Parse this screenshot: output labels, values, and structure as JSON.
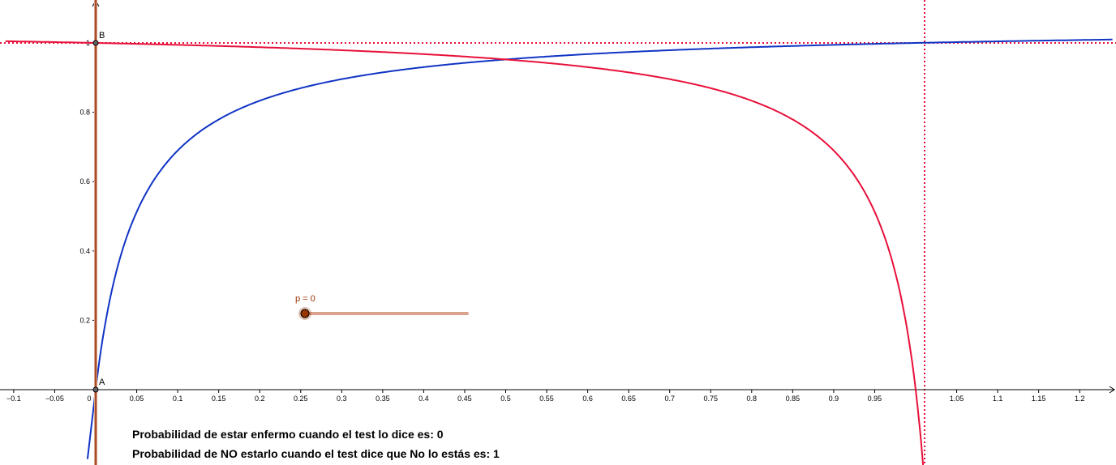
{
  "colors": {
    "background": "#ffffff",
    "axis": "#000000",
    "blue_curve": "#1034c4",
    "red_curve": "#e8103a",
    "slider_line": "#d9a28c",
    "slider_point": "#993300",
    "vertical_line": "#993300"
  },
  "slider": {
    "label": "p = 0",
    "value": 0,
    "min": 0,
    "max": 1
  },
  "points": {
    "A": {
      "name": "A",
      "x": 0,
      "y": 0
    },
    "B": {
      "name": "B",
      "x": 0,
      "y": 1
    }
  },
  "texts": {
    "line1": "Probabilidad de estar enfermo cuando el test lo dice es: 0",
    "line2": "Probabilidad de NO estarlo cuando el test dice que No lo estás es: 1"
  },
  "chart_data": {
    "type": "line",
    "title": "",
    "xlabel": "",
    "ylabel": "",
    "xlim": [
      -0.11,
      1.24
    ],
    "ylim": [
      -0.2,
      1.12
    ],
    "grid": false,
    "x_ticks": [
      "-0.1",
      "-0.05",
      "0",
      "0.05",
      "0.1",
      "0.15",
      "0.2",
      "0.25",
      "0.3",
      "0.35",
      "0.4",
      "0.45",
      "0.5",
      "0.55",
      "0.6",
      "0.65",
      "0.7",
      "0.75",
      "0.8",
      "0.85",
      "0.9",
      "0.95",
      "1.05",
      "1.1",
      "1.15",
      "1.2"
    ],
    "y_ticks": [
      "0.2",
      "0.4",
      "0.6",
      "0.8",
      "1"
    ],
    "series": [
      {
        "color": "#1034c4",
        "x": [
          -0.01,
          0,
          0.02,
          0.05,
          0.1,
          0.15,
          0.2,
          0.3,
          0.4,
          0.5,
          0.6,
          0.7,
          0.8,
          0.9,
          1.0,
          1.1,
          1.24
        ],
        "y": [
          -0.2,
          0,
          0.29,
          0.5,
          0.67,
          0.75,
          0.8,
          0.87,
          0.91,
          0.95,
          0.96,
          0.975,
          0.985,
          0.993,
          1,
          1.005,
          1.01
        ]
      },
      {
        "color": "#e8103a",
        "x": [
          -0.11,
          0,
          0.1,
          0.2,
          0.3,
          0.4,
          0.5,
          0.6,
          0.7,
          0.8,
          0.85,
          0.9,
          0.95,
          0.98,
          1.0,
          1.01
        ],
        "y": [
          1.005,
          1,
          0.995,
          0.99,
          0.975,
          0.965,
          0.95,
          0.93,
          0.91,
          0.87,
          0.83,
          0.76,
          0.6,
          0.38,
          0,
          -0.2
        ]
      }
    ],
    "asymptotes": {
      "horizontal": [
        1
      ],
      "vertical": [
        1
      ]
    }
  }
}
